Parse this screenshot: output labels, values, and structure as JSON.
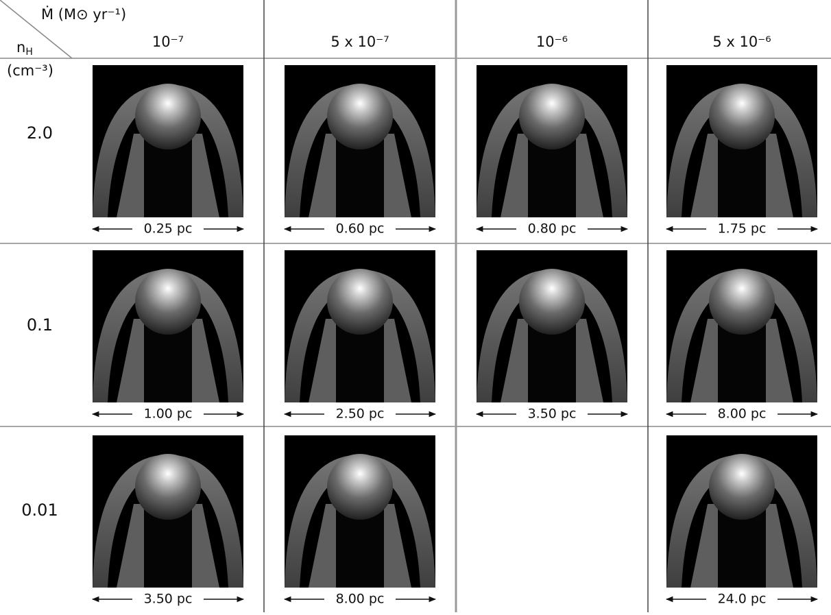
{
  "header": {
    "column_axis": "Ṁ (M⊙ yr⁻¹)",
    "row_axis": {
      "symbol": "n",
      "subscript": "H",
      "unit": "(cm⁻³)"
    }
  },
  "columns": [
    "10⁻⁷",
    "5 x 10⁻⁷",
    "10⁻⁶",
    "5 x 10⁻⁶"
  ],
  "rows": [
    {
      "label": "2.0",
      "cells": [
        "0.25 pc",
        "0.60 pc",
        "0.80 pc",
        "1.75 pc"
      ]
    },
    {
      "label": "0.1",
      "cells": [
        "1.00 pc",
        "2.50 pc",
        "3.50 pc",
        "8.00 pc"
      ]
    },
    {
      "label": "0.01",
      "cells": [
        "3.50 pc",
        "8.00 pc",
        null,
        "24.0 pc"
      ]
    }
  ]
}
